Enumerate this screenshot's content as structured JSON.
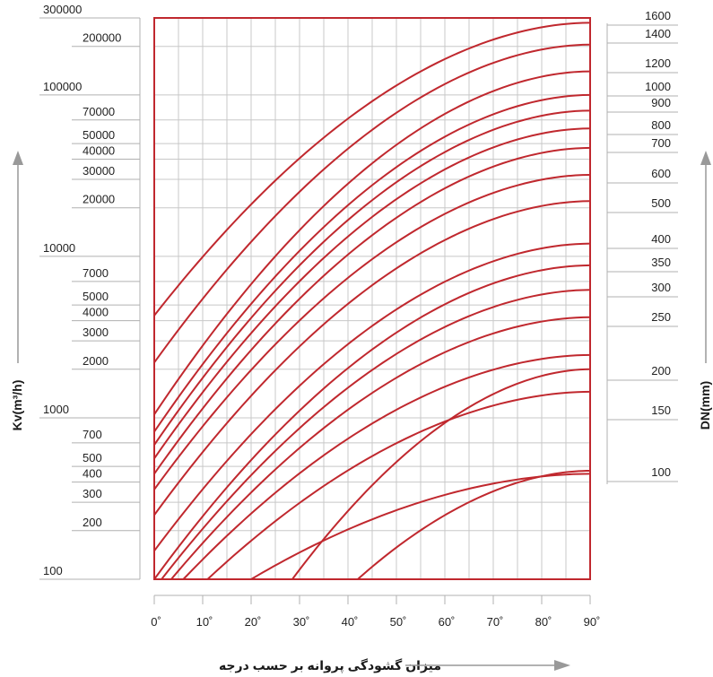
{
  "chart_data": {
    "type": "line",
    "title": "",
    "xlabel": "میزان گشودگی پروانه بر حسب درجه",
    "ylabel": "Kv(m³/h)",
    "y2label": "DN(mm)",
    "xlim": [
      0,
      90
    ],
    "ylim": [
      100,
      300000
    ],
    "yscale": "log",
    "grid": true,
    "line_color": "#c0282e",
    "x_ticks": [
      "0˚",
      "10˚",
      "20˚",
      "30˚",
      "40˚",
      "50˚",
      "60˚",
      "70˚",
      "80˚",
      "90˚"
    ],
    "y_ticks": [
      {
        "label": "300000",
        "value": 300000
      },
      {
        "label": "200000",
        "value": 200000
      },
      {
        "label": "100000",
        "value": 100000
      },
      {
        "label": "70000",
        "value": 70000
      },
      {
        "label": "50000",
        "value": 50000
      },
      {
        "label": "40000",
        "value": 40000
      },
      {
        "label": "30000",
        "value": 30000
      },
      {
        "label": "20000",
        "value": 20000
      },
      {
        "label": "10000",
        "value": 10000
      },
      {
        "label": "7000",
        "value": 7000
      },
      {
        "label": "5000",
        "value": 5000
      },
      {
        "label": "4000",
        "value": 4000
      },
      {
        "label": "3000",
        "value": 3000
      },
      {
        "label": "2000",
        "value": 2000
      },
      {
        "label": "1000",
        "value": 1000
      },
      {
        "label": "700",
        "value": 700
      },
      {
        "label": "500",
        "value": 500
      },
      {
        "label": "400",
        "value": 400
      },
      {
        "label": "300",
        "value": 300
      },
      {
        "label": "200",
        "value": 200
      },
      {
        "label": "100",
        "value": 100
      }
    ],
    "dn_ticks": [
      "1600",
      "1400",
      "1200",
      "1000",
      "900",
      "800",
      "700",
      "600",
      "500",
      "400",
      "350",
      "300",
      "250",
      "200",
      "150",
      "100"
    ],
    "series": [
      {
        "dn": 1600,
        "kv_at_0": 4300,
        "kv_at_90": 280000
      },
      {
        "dn": 1400,
        "kv_at_0": 2200,
        "kv_at_90": 205000
      },
      {
        "dn": 1200,
        "kv_at_0": 1050,
        "kv_at_90": 140000
      },
      {
        "dn": 1000,
        "kv_at_0": 820,
        "kv_at_90": 100000
      },
      {
        "dn": 900,
        "kv_at_0": 680,
        "kv_at_90": 80000
      },
      {
        "dn": 800,
        "kv_at_0": 560,
        "kv_at_90": 62000
      },
      {
        "dn": 700,
        "kv_at_0": 450,
        "kv_at_90": 47000
      },
      {
        "dn": 600,
        "kv_at_0": 360,
        "kv_at_90": 32000
      },
      {
        "dn": 500,
        "kv_at_0": 250,
        "kv_at_90": 22000
      },
      {
        "dn": 400,
        "kv_at_0": 150,
        "kv_at_90": 12000
      },
      {
        "dn": 350,
        "kv_at_0": 100,
        "kv_at_90": 8800
      },
      {
        "dn": 300,
        "kv_at_x": 1.5,
        "kv_at_90": 6200
      },
      {
        "dn": 250,
        "kv_at_x": 3.5,
        "kv_at_90": 4200
      },
      {
        "dn": 200,
        "kv_at_x": 6,
        "kv_at_90": 2450
      },
      {
        "dn": 150,
        "kv_at_x": 11,
        "kv_at_90": 1450
      },
      {
        "dn": 100,
        "kv_at_x": 20,
        "kv_at_90": 450
      }
    ],
    "extra_curves": [
      {
        "start_x": 28.5,
        "end_kv": 2000
      },
      {
        "start_x": 42,
        "end_kv": 470
      }
    ]
  }
}
